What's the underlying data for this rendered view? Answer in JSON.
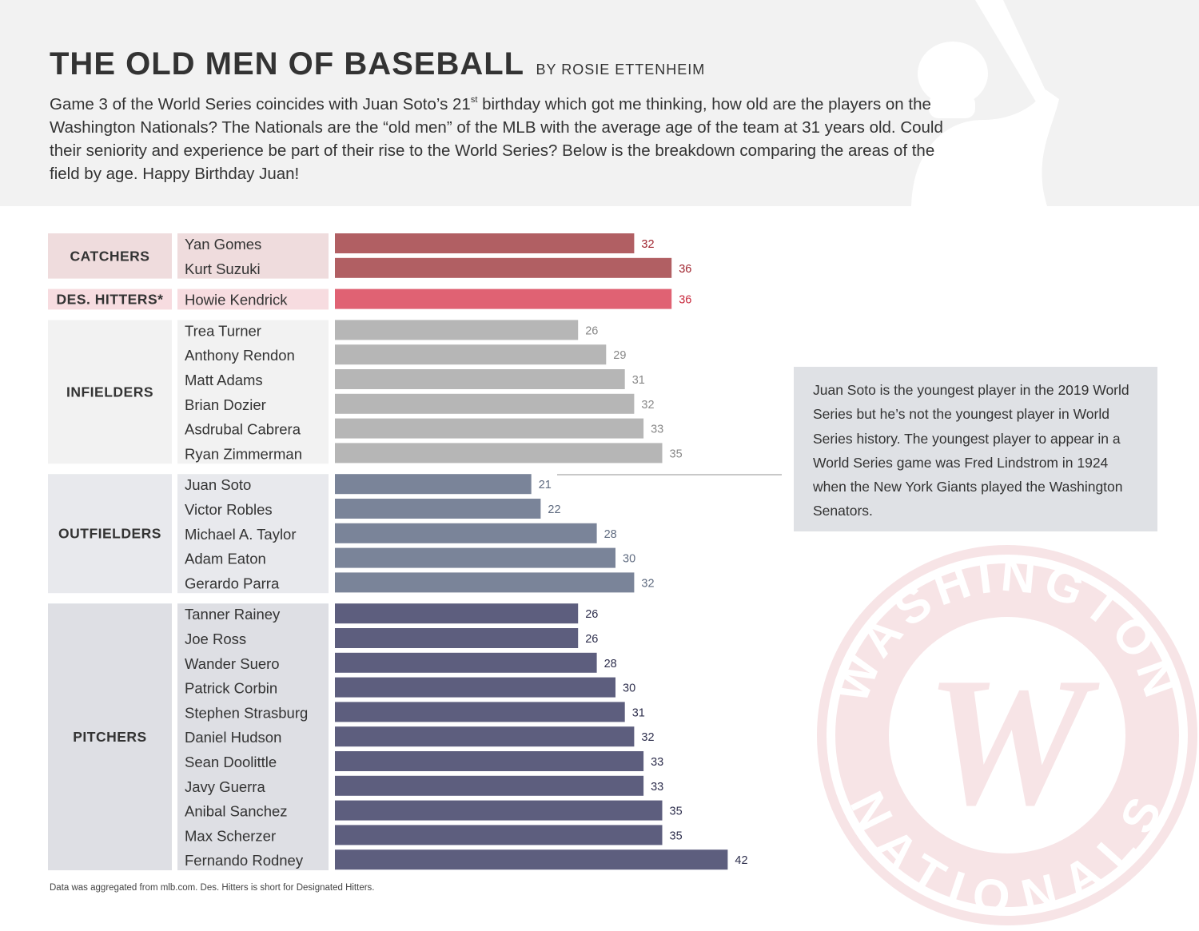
{
  "header": {
    "title": "THE OLD MEN OF BASEBALL",
    "byline": "BY ROSIE ETTENHEIM",
    "intro_before_sup": "Game 3 of the World Series coincides with Juan Soto’s 21",
    "intro_sup": "st",
    "intro_after_sup": " birthday which got me thinking, how old are the players on the Washington Nationals? The Nationals are the “old men” of the MLB with the average age of the team at 31 years old. Could their seniority and experience be part of their rise to the World Series? Below is the breakdown comparing the areas of the field by age. Happy Birthday Juan!"
  },
  "callout": {
    "text": "Juan Soto is the youngest player in the 2019 World Series but he’s not the youngest player in World Series history. The youngest player to appear in a World Series game was Fred Lindstrom in 1924 when the New York Giants played the Washington Senators."
  },
  "footnote": "Data was aggregated from mlb.com. Des. Hitters is short for Designated Hitters.",
  "logo": {
    "arc_top": "WASHINGTON",
    "arc_bottom": "NATIONALS",
    "monogram": "W"
  },
  "colors": {
    "catchers": "#b15f63",
    "designated_hitters": "#e06273",
    "infielders": "#b6b6b6",
    "outfielders": "#7a8499",
    "pitchers": "#5d5e7e"
  },
  "chart_data": {
    "type": "bar",
    "orientation": "horizontal",
    "xlim": [
      0,
      42
    ],
    "groups": [
      {
        "name": "CATCHERS",
        "color": "#b15f63",
        "label_color": "#a0252f",
        "panel_bg": "#efdcdd",
        "players": [
          {
            "name": "Yan Gomes",
            "age": 32
          },
          {
            "name": "Kurt Suzuki",
            "age": 36
          }
        ]
      },
      {
        "name": "DES. HITTERS*",
        "color": "#e06273",
        "label_color": "#c8283c",
        "panel_bg": "#f7dce0",
        "players": [
          {
            "name": "Howie Kendrick",
            "age": 36
          }
        ]
      },
      {
        "name": "INFIELDERS",
        "color": "#b6b6b6",
        "label_color": "#888888",
        "panel_bg": "#f2f2f2",
        "players": [
          {
            "name": "Trea Turner",
            "age": 26
          },
          {
            "name": "Anthony Rendon",
            "age": 29
          },
          {
            "name": "Matt Adams",
            "age": 31
          },
          {
            "name": "Brian Dozier",
            "age": 32
          },
          {
            "name": "Asdrubal Cabrera",
            "age": 33
          },
          {
            "name": "Ryan Zimmerman",
            "age": 35
          }
        ]
      },
      {
        "name": "OUTFIELDERS",
        "color": "#7a8499",
        "label_color": "#5f6b80",
        "panel_bg": "#e8e9ed",
        "players": [
          {
            "name": "Juan Soto",
            "age": 21
          },
          {
            "name": "Victor Robles",
            "age": 22
          },
          {
            "name": "Michael A. Taylor",
            "age": 28
          },
          {
            "name": "Adam Eaton",
            "age": 30
          },
          {
            "name": "Gerardo Parra",
            "age": 32
          }
        ]
      },
      {
        "name": "PITCHERS",
        "color": "#5d5e7e",
        "label_color": "#2e2f4d",
        "panel_bg": "#dedfe4",
        "players": [
          {
            "name": "Tanner Rainey",
            "age": 26
          },
          {
            "name": "Joe Ross",
            "age": 26
          },
          {
            "name": "Wander Suero",
            "age": 28
          },
          {
            "name": "Patrick Corbin",
            "age": 30
          },
          {
            "name": "Stephen Strasburg",
            "age": 31
          },
          {
            "name": "Daniel Hudson",
            "age": 32
          },
          {
            "name": "Sean Doolittle",
            "age": 33
          },
          {
            "name": "Javy Guerra",
            "age": 33
          },
          {
            "name": "Anibal Sanchez",
            "age": 35
          },
          {
            "name": "Max Scherzer",
            "age": 35
          },
          {
            "name": "Fernando Rodney",
            "age": 42
          }
        ]
      }
    ]
  }
}
